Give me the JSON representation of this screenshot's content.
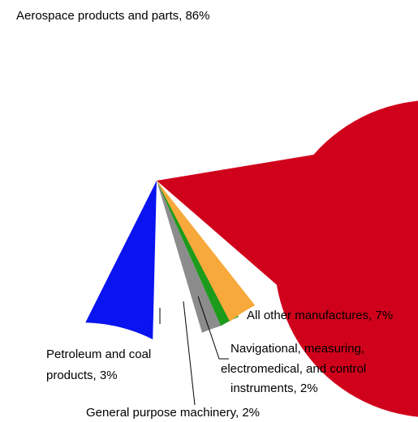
{
  "chart_data": {
    "type": "pie",
    "slices": [
      {
        "label": "Aerospace products and parts, 86%",
        "value": 86,
        "color": "#D0021B"
      },
      {
        "label": "All other manufactures, 7%",
        "value": 7,
        "color": "#0A14F0"
      },
      {
        "label": "Navigational, measuring, electromedical, and control instruments, 2%",
        "value": 2,
        "color": "#8C8C8C"
      },
      {
        "label": "General purpose machinery, 2%",
        "value": 2,
        "color": "#1B9A1B"
      },
      {
        "label": "Petroleum and coal products, 3%",
        "value": 3,
        "color": "#F7A93B"
      }
    ],
    "label_lines": {
      "aerospace": [
        "Aerospace products and parts, 86%"
      ],
      "other": [
        "All other manufactures, 7%"
      ],
      "navigational": [
        "Navigational, measuring,",
        "electromedical, and control",
        "instruments, 2%"
      ],
      "general": [
        "General purpose machinery, 2%"
      ],
      "petroleum": [
        "Petroleum and coal",
        "products, 3%"
      ]
    }
  }
}
